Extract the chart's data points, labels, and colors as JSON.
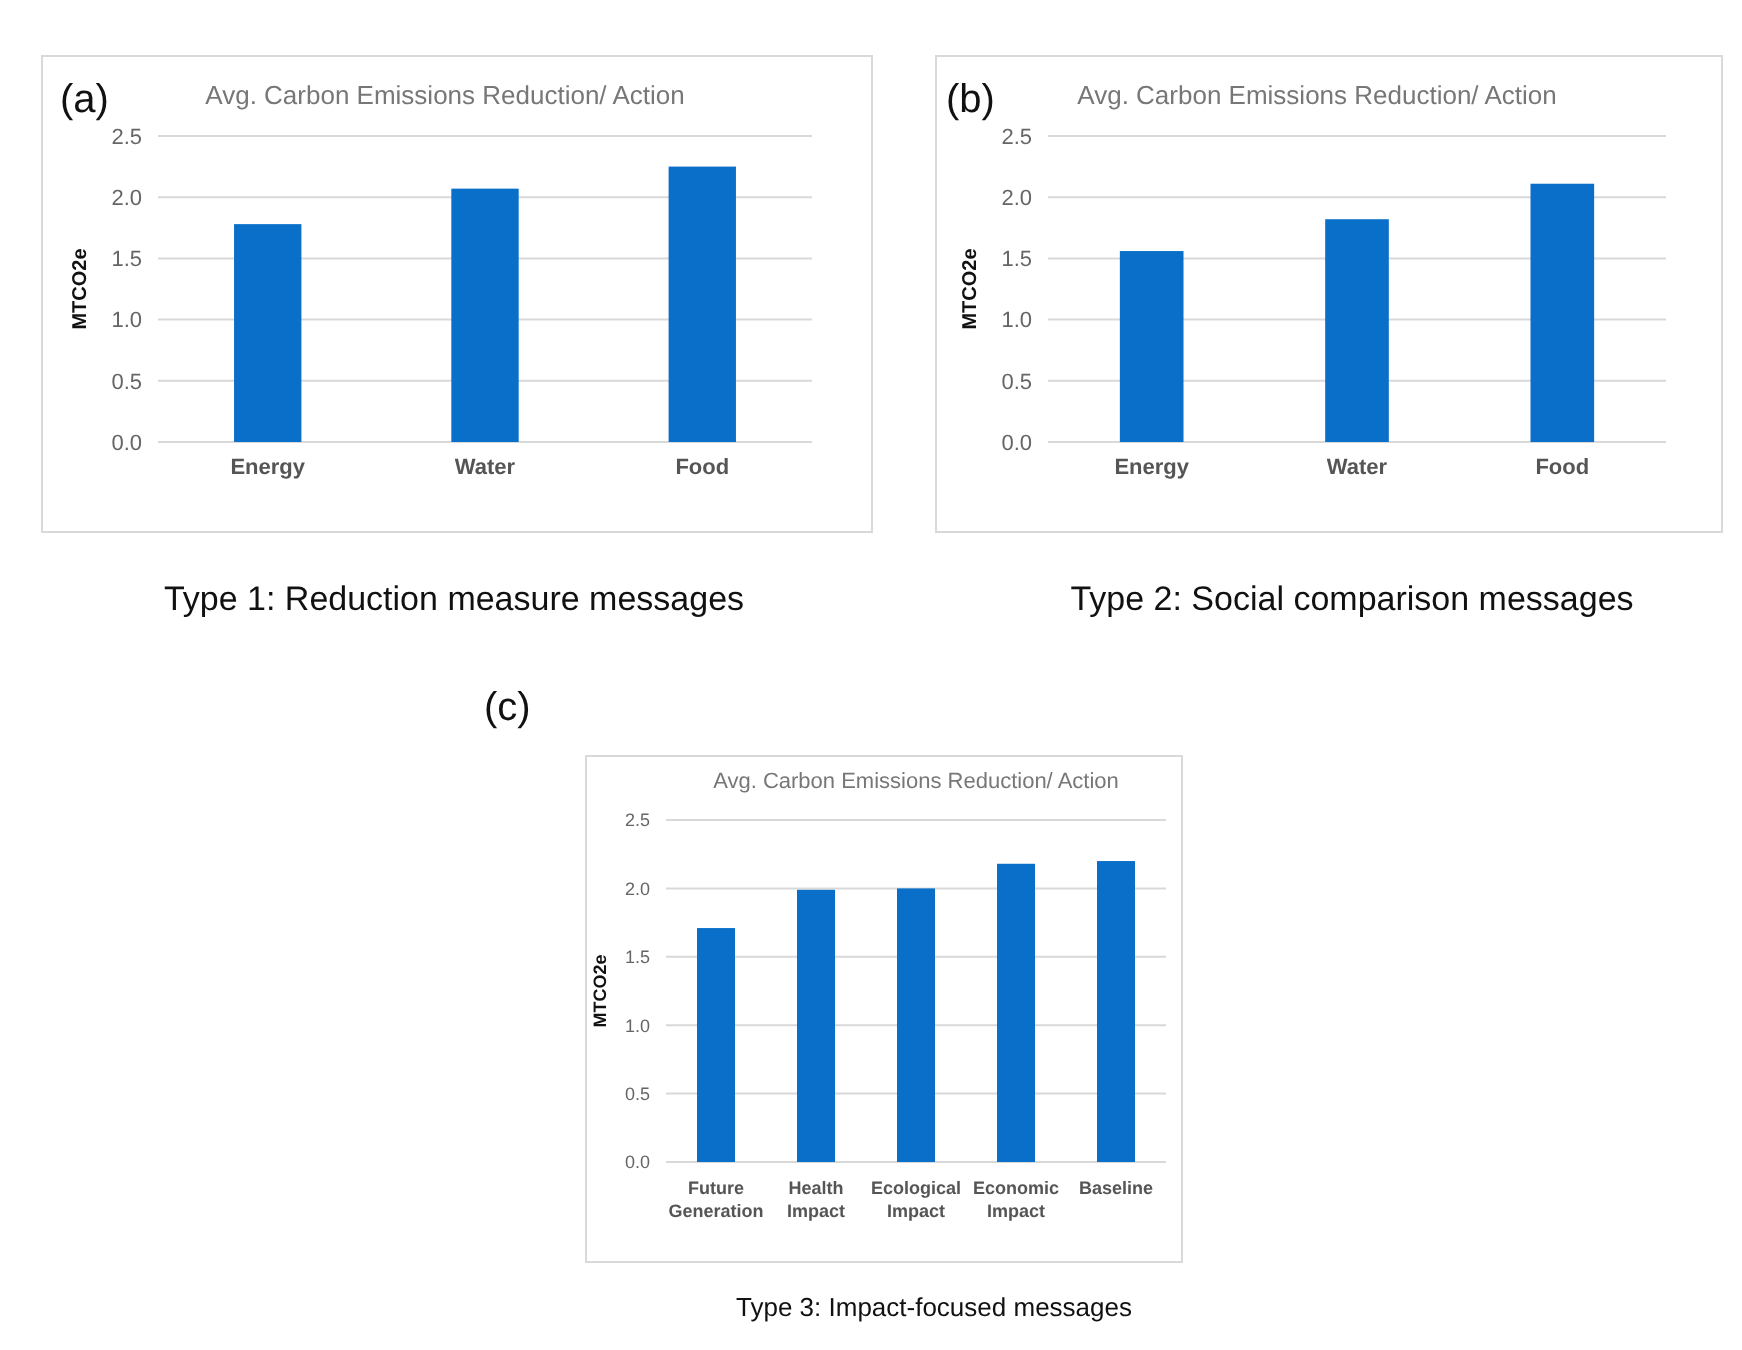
{
  "chart_data": [
    {
      "type": "bar",
      "title": "Avg. Carbon Emissions Reduction/ Action",
      "ylabel": "MTCO2e",
      "categories": [
        "Energy",
        "Water",
        "Food"
      ],
      "values": [
        1.78,
        2.07,
        2.25
      ],
      "color": "#0a6fc9",
      "ylim": [
        0,
        2.5
      ],
      "yticks": [
        {
          "value": 0,
          "label": "0.0"
        },
        {
          "value": 0.5,
          "label": "0.5"
        },
        {
          "value": 1,
          "label": "1.0"
        },
        {
          "value": 1.5,
          "label": "1.5"
        },
        {
          "value": 2,
          "label": "2.0"
        },
        {
          "value": 2.5,
          "label": "2.5"
        }
      ],
      "grid": "y",
      "annotations": [
        "(a)",
        "Type 1: Reduction measure messages"
      ]
    },
    {
      "type": "bar",
      "title": "Avg. Carbon Emissions Reduction/ Action",
      "ylabel": "MTCO2e",
      "categories": [
        "Energy",
        "Water",
        "Food"
      ],
      "values": [
        1.56,
        1.82,
        2.11
      ],
      "color": "#0a6fc9",
      "ylim": [
        0,
        2.5
      ],
      "yticks": [
        {
          "value": 0,
          "label": "0.0"
        },
        {
          "value": 0.5,
          "label": "0.5"
        },
        {
          "value": 1,
          "label": "1.0"
        },
        {
          "value": 1.5,
          "label": "1.5"
        },
        {
          "value": 2,
          "label": "2.0"
        },
        {
          "value": 2.5,
          "label": "2.5"
        }
      ],
      "grid": "y",
      "annotations": [
        "(b)",
        "Type 2: Social comparison messages"
      ]
    },
    {
      "type": "bar",
      "title": "Avg. Carbon Emissions Reduction/ Action",
      "ylabel": "MTCO2e",
      "categories": [
        "Future Generation",
        "Health Impact",
        "Ecological Impact",
        "Economic Impact",
        "Baseline"
      ],
      "values": [
        1.71,
        1.99,
        2.0,
        2.18,
        2.2
      ],
      "color": "#0a6fc9",
      "ylim": [
        0,
        2.5
      ],
      "yticks": [
        {
          "value": 0,
          "label": "0.0"
        },
        {
          "value": 0.5,
          "label": "0.5"
        },
        {
          "value": 1,
          "label": "1.0"
        },
        {
          "value": 1.5,
          "label": "1.5"
        },
        {
          "value": 2,
          "label": "2.0"
        },
        {
          "value": 2.5,
          "label": "2.5"
        }
      ],
      "grid": "y",
      "annotations": [
        "(c)",
        "Type 3: Impact-focused messages"
      ]
    }
  ]
}
